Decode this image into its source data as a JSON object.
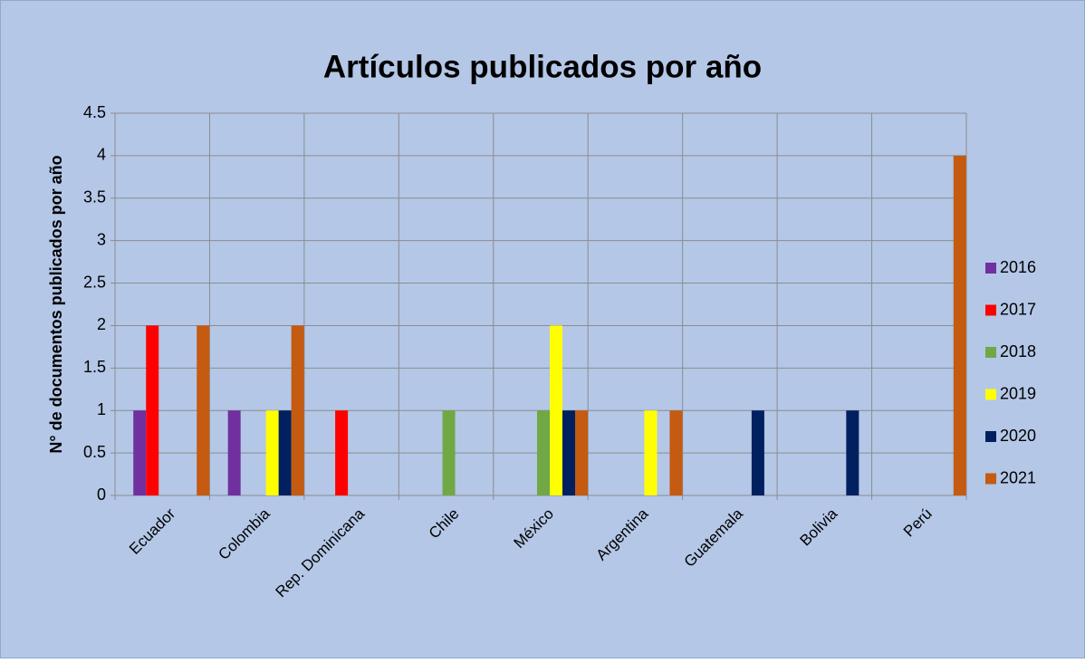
{
  "chart_data": {
    "type": "bar",
    "title": "Artículos publicados por año",
    "y_label": "N° de documentos  publicados por año",
    "categories": [
      "Ecuador",
      "Colombia",
      "Rep. Dominicana",
      "Chile",
      "México",
      "Argentina",
      "Guatemala",
      "Bolivia",
      "Perú"
    ],
    "series": [
      {
        "name": "2016",
        "color": "#7030a0",
        "values": [
          1,
          1,
          0,
          0,
          0,
          0,
          0,
          0,
          0
        ]
      },
      {
        "name": "2017",
        "color": "#ff0000",
        "values": [
          2,
          0,
          1,
          0,
          0,
          0,
          0,
          0,
          0
        ]
      },
      {
        "name": "2018",
        "color": "#70a845",
        "values": [
          0,
          0,
          0,
          1,
          1,
          0,
          0,
          0,
          0
        ]
      },
      {
        "name": "2019",
        "color": "#ffff00",
        "values": [
          0,
          1,
          0,
          0,
          2,
          1,
          0,
          0,
          0
        ]
      },
      {
        "name": "2020",
        "color": "#002060",
        "values": [
          0,
          1,
          0,
          0,
          1,
          0,
          1,
          1,
          0
        ]
      },
      {
        "name": "2021",
        "color": "#c55a11",
        "values": [
          2,
          2,
          0,
          0,
          1,
          1,
          0,
          0,
          4
        ]
      }
    ],
    "ylim": [
      0,
      4.5
    ],
    "yticks": [
      0,
      0.5,
      1,
      1.5,
      2,
      2.5,
      3,
      3.5,
      4,
      4.5
    ],
    "grid": true,
    "legend": "right"
  }
}
